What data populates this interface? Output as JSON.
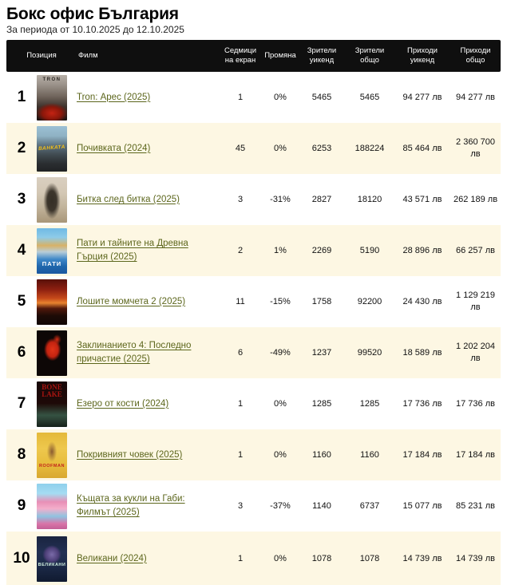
{
  "page": {
    "title": "Бокс офис България",
    "subtitle": "За периода от 10.10.2025 до 12.10.2025"
  },
  "colors": {
    "link_accent": "#5c661c",
    "row_alternate": "#fdf7e3",
    "header_bg": "#0f0f0f"
  },
  "table": {
    "headers": {
      "position": "Позиция",
      "film": "Филм",
      "weeks": "Седмици на екран",
      "change": "Промяна",
      "viewers_weekend": "Зрители уикенд",
      "viewers_total": "Зрители общо",
      "revenue_weekend": "Приходи уикенд",
      "revenue_total": "Приходи общо"
    },
    "rows": [
      {
        "position": "1",
        "film": "Tron: Арес (2025)",
        "poster_text": "TRON",
        "weeks": "1",
        "change": "0%",
        "viewers_weekend": "5465",
        "viewers_total": "5465",
        "revenue_weekend": "94 277 лв",
        "revenue_total": "94 277 лв"
      },
      {
        "position": "2",
        "film": "Почивката (2024)",
        "poster_text": "ВАНКАТА",
        "weeks": "45",
        "change": "0%",
        "viewers_weekend": "6253",
        "viewers_total": "188224",
        "revenue_weekend": "85 464 лв",
        "revenue_total": "2 360 700 лв"
      },
      {
        "position": "3",
        "film": "Битка след битка (2025)",
        "weeks": "3",
        "change": "-31%",
        "viewers_weekend": "2827",
        "viewers_total": "18120",
        "revenue_weekend": "43 571 лв",
        "revenue_total": "262 189 лв"
      },
      {
        "position": "4",
        "film": "Пати и тайните на Древна Гърция (2025)",
        "poster_text": "ПАТИ",
        "weeks": "2",
        "change": "1%",
        "viewers_weekend": "2269",
        "viewers_total": "5190",
        "revenue_weekend": "28 896 лв",
        "revenue_total": "66 257 лв"
      },
      {
        "position": "5",
        "film": "Лошите момчета 2 (2025)",
        "weeks": "11",
        "change": "-15%",
        "viewers_weekend": "1758",
        "viewers_total": "92200",
        "revenue_weekend": "24 430 лв",
        "revenue_total": "1 129 219 лв"
      },
      {
        "position": "6",
        "film": "Заклинанието 4: Последно причастие (2025)",
        "weeks": "6",
        "change": "-49%",
        "viewers_weekend": "1237",
        "viewers_total": "99520",
        "revenue_weekend": "18 589 лв",
        "revenue_total": "1 202 204 лв"
      },
      {
        "position": "7",
        "film": "Езеро от кости (2024)",
        "poster_text": "BONE LAKE",
        "weeks": "1",
        "change": "0%",
        "viewers_weekend": "1285",
        "viewers_total": "1285",
        "revenue_weekend": "17 736 лв",
        "revenue_total": "17 736 лв"
      },
      {
        "position": "8",
        "film": "Покривният човек (2025)",
        "poster_text": "ROOFMAN",
        "weeks": "1",
        "change": "0%",
        "viewers_weekend": "1160",
        "viewers_total": "1160",
        "revenue_weekend": "17 184 лв",
        "revenue_total": "17 184 лв"
      },
      {
        "position": "9",
        "film": "Къщата за кукли на Габи: Филмът (2025)",
        "weeks": "3",
        "change": "-37%",
        "viewers_weekend": "1140",
        "viewers_total": "6737",
        "revenue_weekend": "15 077 лв",
        "revenue_total": "85 231 лв"
      },
      {
        "position": "10",
        "film": "Великани (2024)",
        "poster_text": "ВЕЛИКАНИ",
        "weeks": "1",
        "change": "0%",
        "viewers_weekend": "1078",
        "viewers_total": "1078",
        "revenue_weekend": "14 739 лв",
        "revenue_total": "14 739 лв"
      }
    ]
  }
}
